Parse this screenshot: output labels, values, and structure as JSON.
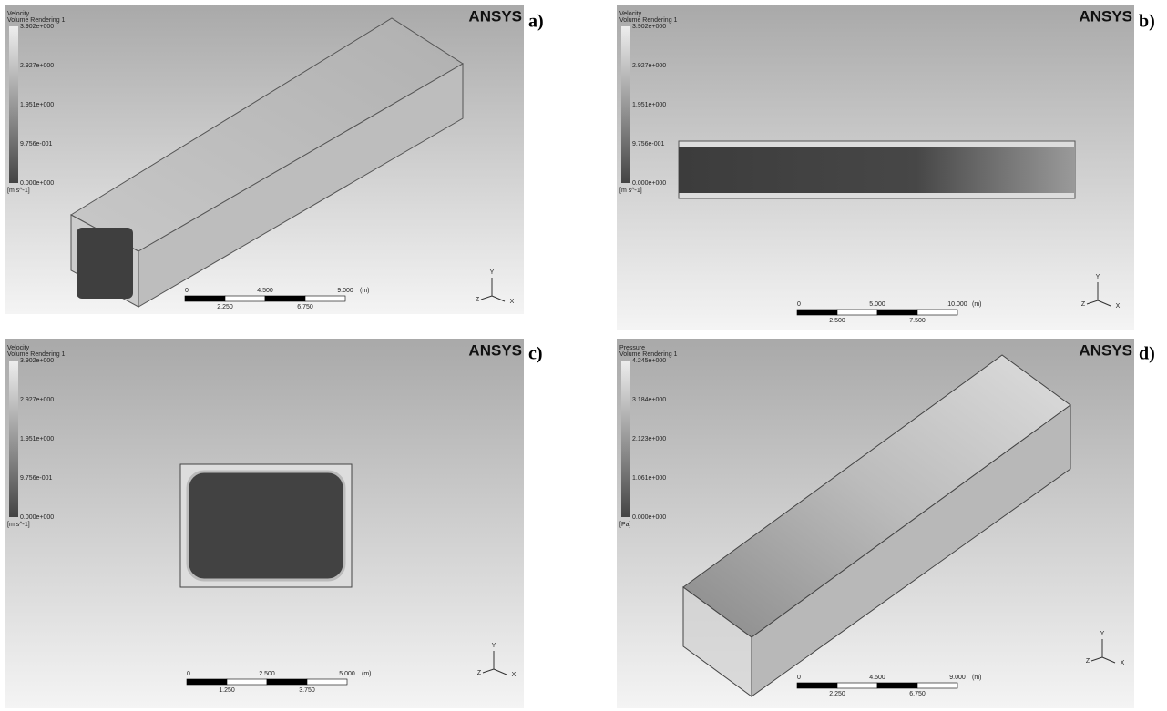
{
  "panels": [
    {
      "label": "a)",
      "logo": "ANSYS",
      "legend": {
        "title": "Velocity",
        "subtitle": "Volume Rendering 1",
        "ticks": [
          "3.902e+000",
          "2.927e+000",
          "1.951e+000",
          "9.756e-001",
          "0.000e+000"
        ],
        "unit": "[m s^-1]"
      },
      "scale": {
        "top": [
          "0",
          "4.500",
          "9.000"
        ],
        "unit": "(m)",
        "bottom": [
          "2.250",
          "6.750"
        ]
      },
      "axes": {
        "y": "Y",
        "z": "Z",
        "x": "X"
      }
    },
    {
      "label": "b)",
      "logo": "ANSYS",
      "legend": {
        "title": "Velocity",
        "subtitle": "Volume Rendering 1",
        "ticks": [
          "3.902e+000",
          "2.927e+000",
          "1.951e+000",
          "9.756e-001",
          "0.000e+000"
        ],
        "unit": "[m s^-1]"
      },
      "scale": {
        "top": [
          "0",
          "5.000",
          "10.000"
        ],
        "unit": "(m)",
        "bottom": [
          "2.500",
          "7.500"
        ]
      },
      "axes": {
        "y": "Y",
        "z": "Z",
        "x": "X"
      }
    },
    {
      "label": "c)",
      "logo": "ANSYS",
      "legend": {
        "title": "Velocity",
        "subtitle": "Volume Rendering 1",
        "ticks": [
          "3.902e+000",
          "2.927e+000",
          "1.951e+000",
          "9.756e-001",
          "0.000e+000"
        ],
        "unit": "[m s^-1]"
      },
      "scale": {
        "top": [
          "0",
          "2.500",
          "5.000"
        ],
        "unit": "(m)",
        "bottom": [
          "1.250",
          "3.750"
        ]
      },
      "axes": {
        "y": "Y",
        "z": "Z",
        "x": "X"
      }
    },
    {
      "label": "d)",
      "logo": "ANSYS",
      "legend": {
        "title": "Pressure",
        "subtitle": "Volume Rendering 1",
        "ticks": [
          "4.245e+000",
          "3.184e+000",
          "2.123e+000",
          "1.061e+000",
          "0.000e+000"
        ],
        "unit": "[Pa]"
      },
      "scale": {
        "top": [
          "0",
          "4.500",
          "9.000"
        ],
        "unit": "(m)",
        "bottom": [
          "2.250",
          "6.750"
        ]
      },
      "axes": {
        "y": "Y",
        "z": "Z",
        "x": "X"
      }
    }
  ]
}
